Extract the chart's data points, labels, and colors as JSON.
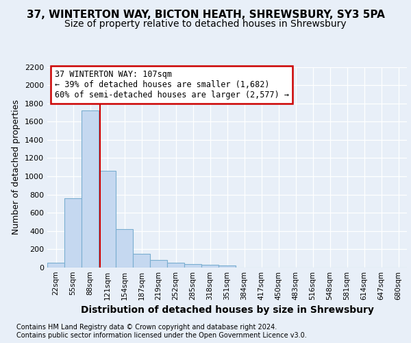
{
  "title1": "37, WINTERTON WAY, BICTON HEATH, SHREWSBURY, SY3 5PA",
  "title2": "Size of property relative to detached houses in Shrewsbury",
  "xlabel": "Distribution of detached houses by size in Shrewsbury",
  "ylabel": "Number of detached properties",
  "bin_labels": [
    "22sqm",
    "55sqm",
    "88sqm",
    "121sqm",
    "154sqm",
    "187sqm",
    "219sqm",
    "252sqm",
    "285sqm",
    "318sqm",
    "351sqm",
    "384sqm",
    "417sqm",
    "450sqm",
    "483sqm",
    "516sqm",
    "548sqm",
    "581sqm",
    "614sqm",
    "647sqm",
    "680sqm"
  ],
  "bar_values": [
    55,
    760,
    1720,
    1060,
    420,
    150,
    85,
    50,
    40,
    30,
    20,
    0,
    0,
    0,
    0,
    0,
    0,
    0,
    0,
    0,
    0
  ],
  "bar_color": "#c5d8f0",
  "bar_edge_color": "#7aaed0",
  "vline_color": "#cc0000",
  "annotation_text": "37 WINTERTON WAY: 107sqm\n← 39% of detached houses are smaller (1,682)\n60% of semi-detached houses are larger (2,577) →",
  "annotation_box_color": "#ffffff",
  "annotation_box_edge": "#cc0000",
  "ylim": [
    0,
    2200
  ],
  "yticks": [
    0,
    200,
    400,
    600,
    800,
    1000,
    1200,
    1400,
    1600,
    1800,
    2000,
    2200
  ],
  "footer1": "Contains HM Land Registry data © Crown copyright and database right 2024.",
  "footer2": "Contains public sector information licensed under the Open Government Licence v3.0.",
  "background_color": "#e8eff8",
  "plot_background": "#e8eff8",
  "grid_color": "#ffffff",
  "title_fontsize": 11,
  "subtitle_fontsize": 10,
  "ylabel_fontsize": 9,
  "xlabel_fontsize": 10,
  "annot_fontsize": 8.5,
  "footer_fontsize": 7,
  "tick_fontsize": 8,
  "xtick_fontsize": 7.5
}
